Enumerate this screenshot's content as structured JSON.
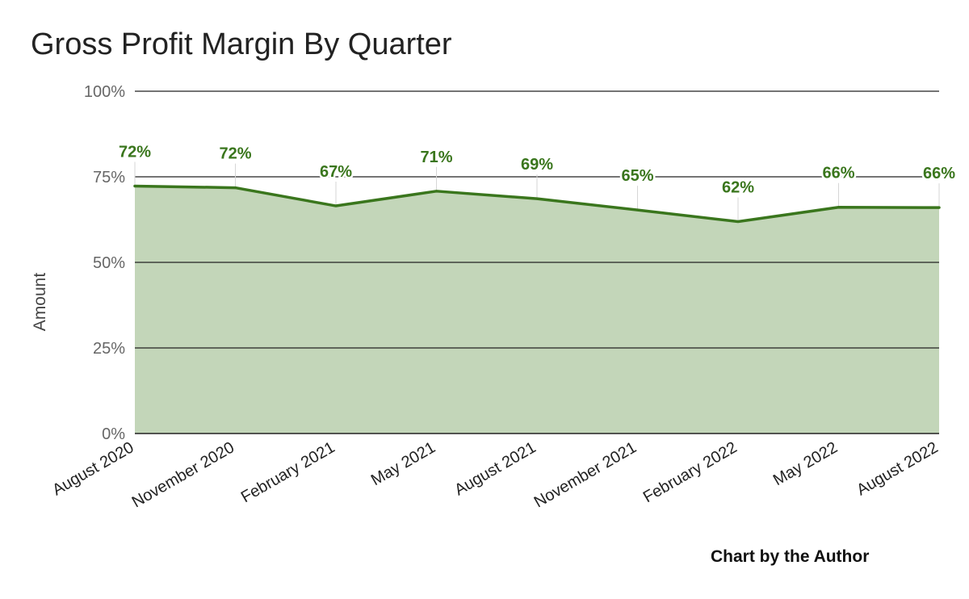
{
  "chart_data": {
    "type": "area",
    "title": "Gross Profit Margin By Quarter",
    "xlabel": "",
    "ylabel": "Amount",
    "ylim": [
      0,
      100
    ],
    "yticks": [
      0,
      25,
      50,
      75,
      100
    ],
    "ytick_labels": [
      "0%",
      "25%",
      "50%",
      "75%",
      "100%"
    ],
    "categories": [
      "August 2020",
      "November 2020",
      "February 2021",
      "May 2021",
      "August 2021",
      "November 2021",
      "February 2022",
      "May 2022",
      "August 2022"
    ],
    "values": [
      72.3,
      71.8,
      66.5,
      70.8,
      68.6,
      65.3,
      61.9,
      66.1,
      66.0
    ],
    "data_labels": [
      "72%",
      "72%",
      "67%",
      "71%",
      "69%",
      "65%",
      "62%",
      "66%",
      "66%"
    ],
    "grid": true,
    "legend": "none",
    "colors": {
      "line": "#3a761d",
      "fill": "#c3d6b9",
      "label": "#3a761d",
      "grid": "#222222",
      "tick": "#666666"
    }
  },
  "footer": {
    "credit": "Chart by the Author"
  }
}
